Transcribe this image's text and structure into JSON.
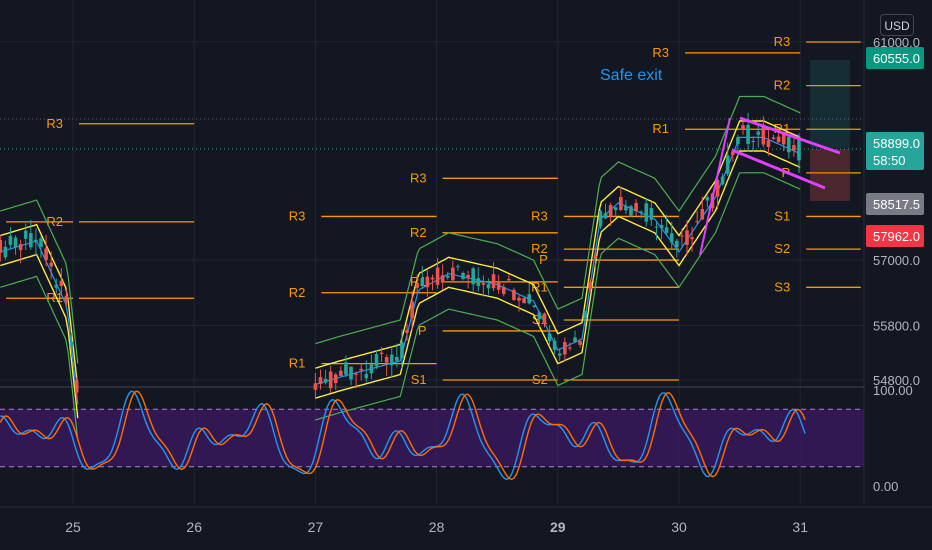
{
  "currency": "USD",
  "colors": {
    "background": "#131722",
    "grid": "#232632",
    "pivot": "#ff9800",
    "annotation": "#2196f3",
    "up": "#26a69a",
    "down": "#ef5350",
    "stoch_k": "#2196f3",
    "stoch_d": "#ff6d00",
    "stoch_band": "#4a1a7a",
    "band_green": "#4caf50",
    "band_yellow": "#ffeb3b",
    "wedge": "#e040fb"
  },
  "price_axis": {
    "ticks": [
      {
        "value": 54800,
        "label": "54800.0"
      },
      {
        "value": 55800,
        "label": "55800.0"
      },
      {
        "value": 57000,
        "label": "57000.0"
      },
      {
        "value": 61000,
        "label": "61000.0"
      }
    ],
    "tags": [
      {
        "value": 60555,
        "label": "60555.0",
        "color": "#089981",
        "text_color": "#ffffff",
        "lines": []
      },
      {
        "value": 58899,
        "label": "58899.0",
        "color": "#26a69a",
        "text_color": "#ffffff",
        "lines": [
          "58:50"
        ]
      },
      {
        "value": 58517.5,
        "label": "58517.5",
        "color": "#787b86",
        "text_color": "#ffffff",
        "lines": []
      },
      {
        "value": 57962,
        "label": "57962.0",
        "color": "#f23645",
        "text_color": "#ffffff",
        "lines": []
      }
    ]
  },
  "stoch_axis": {
    "ticks": [
      {
        "value": 100,
        "label": "100.00"
      },
      {
        "value": 0,
        "label": "0.00"
      }
    ]
  },
  "date_axis": {
    "ticks": [
      {
        "value": 25,
        "label": "25",
        "bold": false
      },
      {
        "value": 26,
        "label": "26",
        "bold": false
      },
      {
        "value": 27,
        "label": "27",
        "bold": false
      },
      {
        "value": 28,
        "label": "28",
        "bold": false
      },
      {
        "value": 29,
        "label": "29",
        "bold": true
      },
      {
        "value": 30,
        "label": "30",
        "bold": false
      },
      {
        "value": 31,
        "label": "31",
        "bold": false
      }
    ]
  },
  "annotation": {
    "text": "Safe exit"
  },
  "chart_data": {
    "type": "candlestick",
    "y_range": [
      54600,
      61100
    ],
    "x_range": [
      24.4,
      31.5
    ],
    "stoch_range": [
      -10,
      110
    ],
    "stoch_band": [
      20,
      80
    ],
    "pivot_levels": [
      {
        "label": "R2",
        "value": 57700,
        "x": [
          24.0,
          25.0
        ]
      },
      {
        "label": "R1",
        "value": 56300,
        "x": [
          24.0,
          25.0
        ]
      },
      {
        "label": "R3",
        "value": 59500,
        "x": [
          25.0,
          26.0
        ]
      },
      {
        "label": "R2",
        "value": 57700,
        "x": [
          25.0,
          26.0
        ]
      },
      {
        "label": "R1",
        "value": 56300,
        "x": [
          25.0,
          26.0
        ]
      },
      {
        "label": "R3",
        "value": 57800,
        "x": [
          27.0,
          28.0
        ]
      },
      {
        "label": "R2",
        "value": 56400,
        "x": [
          27.0,
          28.0
        ]
      },
      {
        "label": "R1",
        "value": 55100,
        "x": [
          27.0,
          28.0
        ]
      },
      {
        "label": "R3",
        "value": 58500,
        "x": [
          28.0,
          29.0
        ]
      },
      {
        "label": "R2",
        "value": 57500,
        "x": [
          28.0,
          29.0
        ]
      },
      {
        "label": "R1",
        "value": 56600,
        "x": [
          28.0,
          29.0
        ]
      },
      {
        "label": "P",
        "value": 55700,
        "x": [
          28.0,
          29.0
        ]
      },
      {
        "label": "S1",
        "value": 54800,
        "x": [
          28.0,
          29.0
        ]
      },
      {
        "label": "R3",
        "value": 57800,
        "x": [
          29.0,
          30.0
        ]
      },
      {
        "label": "R2",
        "value": 57200,
        "x": [
          29.0,
          30.0
        ]
      },
      {
        "label": "R1",
        "value": 56500,
        "x": [
          29.0,
          30.0
        ]
      },
      {
        "label": "P",
        "value": 57000,
        "x": [
          29.0,
          30.0
        ]
      },
      {
        "label": "S1",
        "value": 55900,
        "x": [
          29.0,
          30.0
        ]
      },
      {
        "label": "S2",
        "value": 54800,
        "x": [
          29.0,
          30.0
        ]
      },
      {
        "label": "R3",
        "value": 60800,
        "x": [
          30.0,
          31.0
        ]
      },
      {
        "label": "R1",
        "value": 59400,
        "x": [
          30.0,
          31.0
        ]
      },
      {
        "label": "R3",
        "value": 61000,
        "x": [
          31.0,
          31.5
        ]
      },
      {
        "label": "R2",
        "value": 60200,
        "x": [
          31.0,
          31.5
        ]
      },
      {
        "label": "R1",
        "value": 59400,
        "x": [
          31.0,
          31.5
        ]
      },
      {
        "label": "P",
        "value": 58600,
        "x": [
          31.0,
          31.5
        ]
      },
      {
        "label": "S1",
        "value": 57800,
        "x": [
          31.0,
          31.5
        ]
      },
      {
        "label": "S2",
        "value": 57200,
        "x": [
          31.0,
          31.5
        ]
      },
      {
        "label": "S3",
        "value": 56500,
        "x": [
          31.0,
          31.5
        ]
      }
    ]
  }
}
